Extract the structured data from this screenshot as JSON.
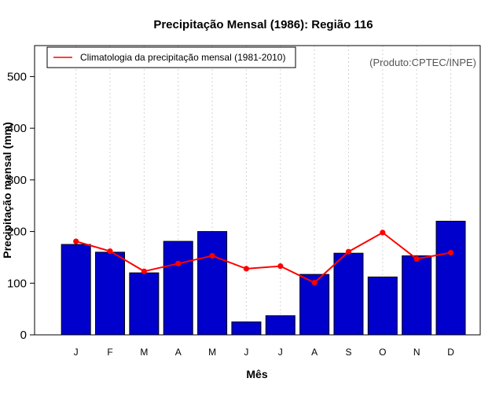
{
  "chart_data": {
    "type": "bar",
    "title": "Precipitação Mensal (1986): Região 116",
    "xlabel": "Mês",
    "ylabel": "Precipitação mensal (mm)",
    "credit": "(Produto:CPTEC/INPE)",
    "categories": [
      "J",
      "F",
      "M",
      "A",
      "M",
      "J",
      "J",
      "A",
      "S",
      "O",
      "N",
      "D"
    ],
    "ylim": [
      0,
      560
    ],
    "yticks": [
      0,
      100,
      200,
      300,
      400,
      500
    ],
    "grid": "vertical-dashed",
    "legend_position": "top-left",
    "series": [
      {
        "name": "Precipitação mensal (1986)",
        "kind": "bar",
        "color": "#0000CD",
        "values": [
          175,
          160,
          120,
          181,
          200,
          25,
          37,
          117,
          158,
          112,
          153,
          220
        ]
      },
      {
        "name": "Climatologia da precipitação mensal (1981-2010)",
        "kind": "line",
        "color": "#FF0000",
        "values": [
          181,
          162,
          123,
          138,
          153,
          128,
          133,
          101,
          161,
          198,
          147,
          159
        ]
      }
    ]
  }
}
